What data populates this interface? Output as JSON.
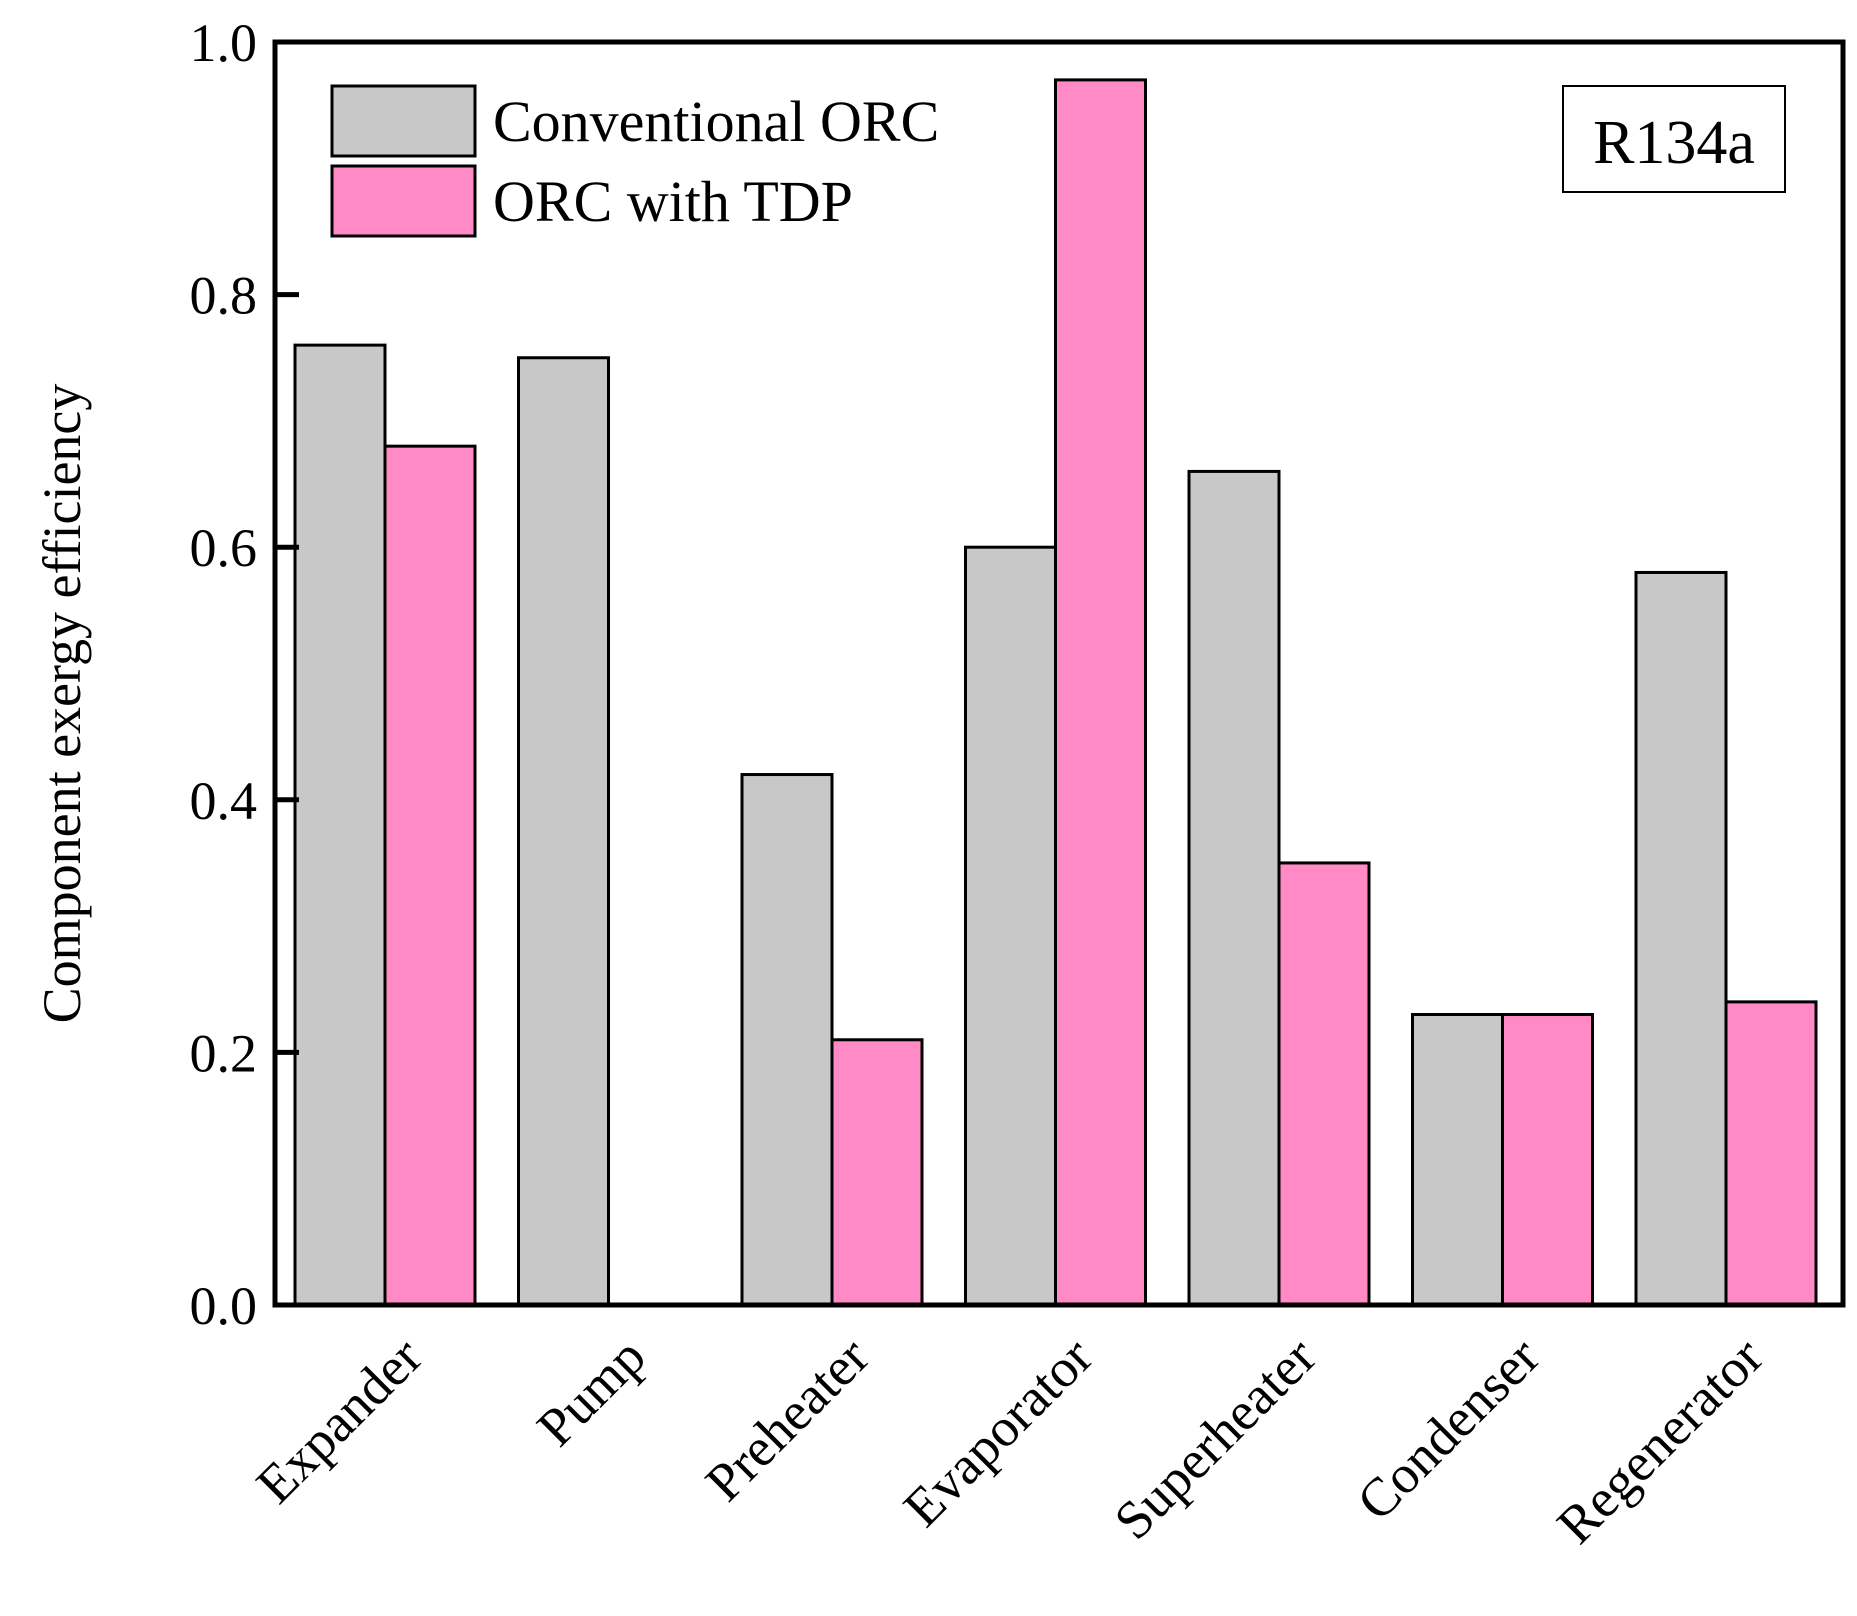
{
  "chart_data": {
    "type": "bar",
    "title": "",
    "xlabel": "",
    "ylabel": "Component exergy efficiency",
    "ylim": [
      0,
      1.0
    ],
    "yticks": [
      0.0,
      0.2,
      0.4,
      0.6,
      0.8,
      1.0
    ],
    "ytick_labels": [
      "0.0",
      "0.2",
      "0.4",
      "0.6",
      "0.8",
      "1.0"
    ],
    "categories": [
      "Expander",
      "Pump",
      "Preheater",
      "Evaporator",
      "Superheater",
      "Condenser",
      "Regenerator"
    ],
    "series": [
      {
        "name": "Conventional ORC",
        "color": "#c8c8c8",
        "values": [
          0.76,
          0.75,
          0.42,
          0.6,
          0.66,
          0.23,
          0.58
        ]
      },
      {
        "name": "ORC with TDP",
        "color": "#ff8ac5",
        "values": [
          0.68,
          0.0,
          0.21,
          0.97,
          0.35,
          0.23,
          0.24
        ]
      }
    ],
    "legend_position": "top-left",
    "annotation": "R134a",
    "grid": false
  }
}
